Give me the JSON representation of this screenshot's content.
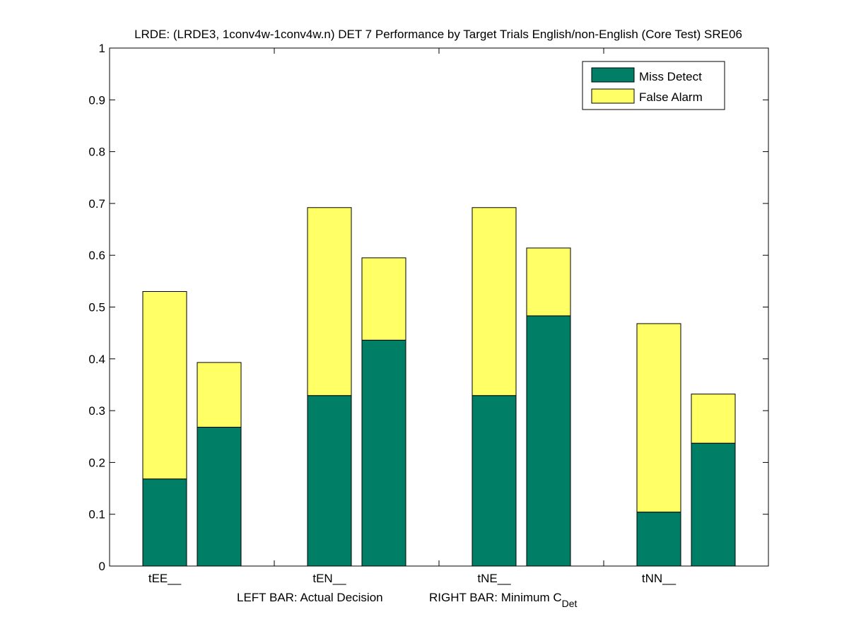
{
  "chart_data": {
    "type": "bar",
    "stacked": true,
    "title": "LRDE: (LRDE3, 1conv4w-1conv4w.n) DET 7 Performance by Target Trials English/non-English (Core Test) SRE06",
    "xlabel_left": "LEFT BAR: Actual Decision",
    "xlabel_right_prefix": "RIGHT BAR: Minimum C",
    "xlabel_right_sub": "Det",
    "categories": [
      "tEE__",
      "tEN__",
      "tNE__",
      "tNN__"
    ],
    "ylim": [
      0,
      1
    ],
    "yticks": [
      "0",
      "0.1",
      "0.2",
      "0.3",
      "0.4",
      "0.5",
      "0.6",
      "0.7",
      "0.8",
      "0.9",
      "1"
    ],
    "series": [
      {
        "name": "Miss Detect",
        "color": "#007f66"
      },
      {
        "name": "False Alarm",
        "color": "#ffff66"
      }
    ],
    "bars": [
      {
        "category": "tEE__",
        "position": "left",
        "miss": 0.168,
        "false_alarm": 0.362
      },
      {
        "category": "tEE__",
        "position": "right",
        "miss": 0.268,
        "false_alarm": 0.125
      },
      {
        "category": "tEN__",
        "position": "left",
        "miss": 0.329,
        "false_alarm": 0.363
      },
      {
        "category": "tEN__",
        "position": "right",
        "miss": 0.436,
        "false_alarm": 0.159
      },
      {
        "category": "tNE__",
        "position": "left",
        "miss": 0.329,
        "false_alarm": 0.363
      },
      {
        "category": "tNE__",
        "position": "right",
        "miss": 0.483,
        "false_alarm": 0.131
      },
      {
        "category": "tNN__",
        "position": "left",
        "miss": 0.104,
        "false_alarm": 0.364
      },
      {
        "category": "tNN__",
        "position": "right",
        "miss": 0.237,
        "false_alarm": 0.095
      }
    ],
    "legend_position": "top-right",
    "grid": false
  }
}
